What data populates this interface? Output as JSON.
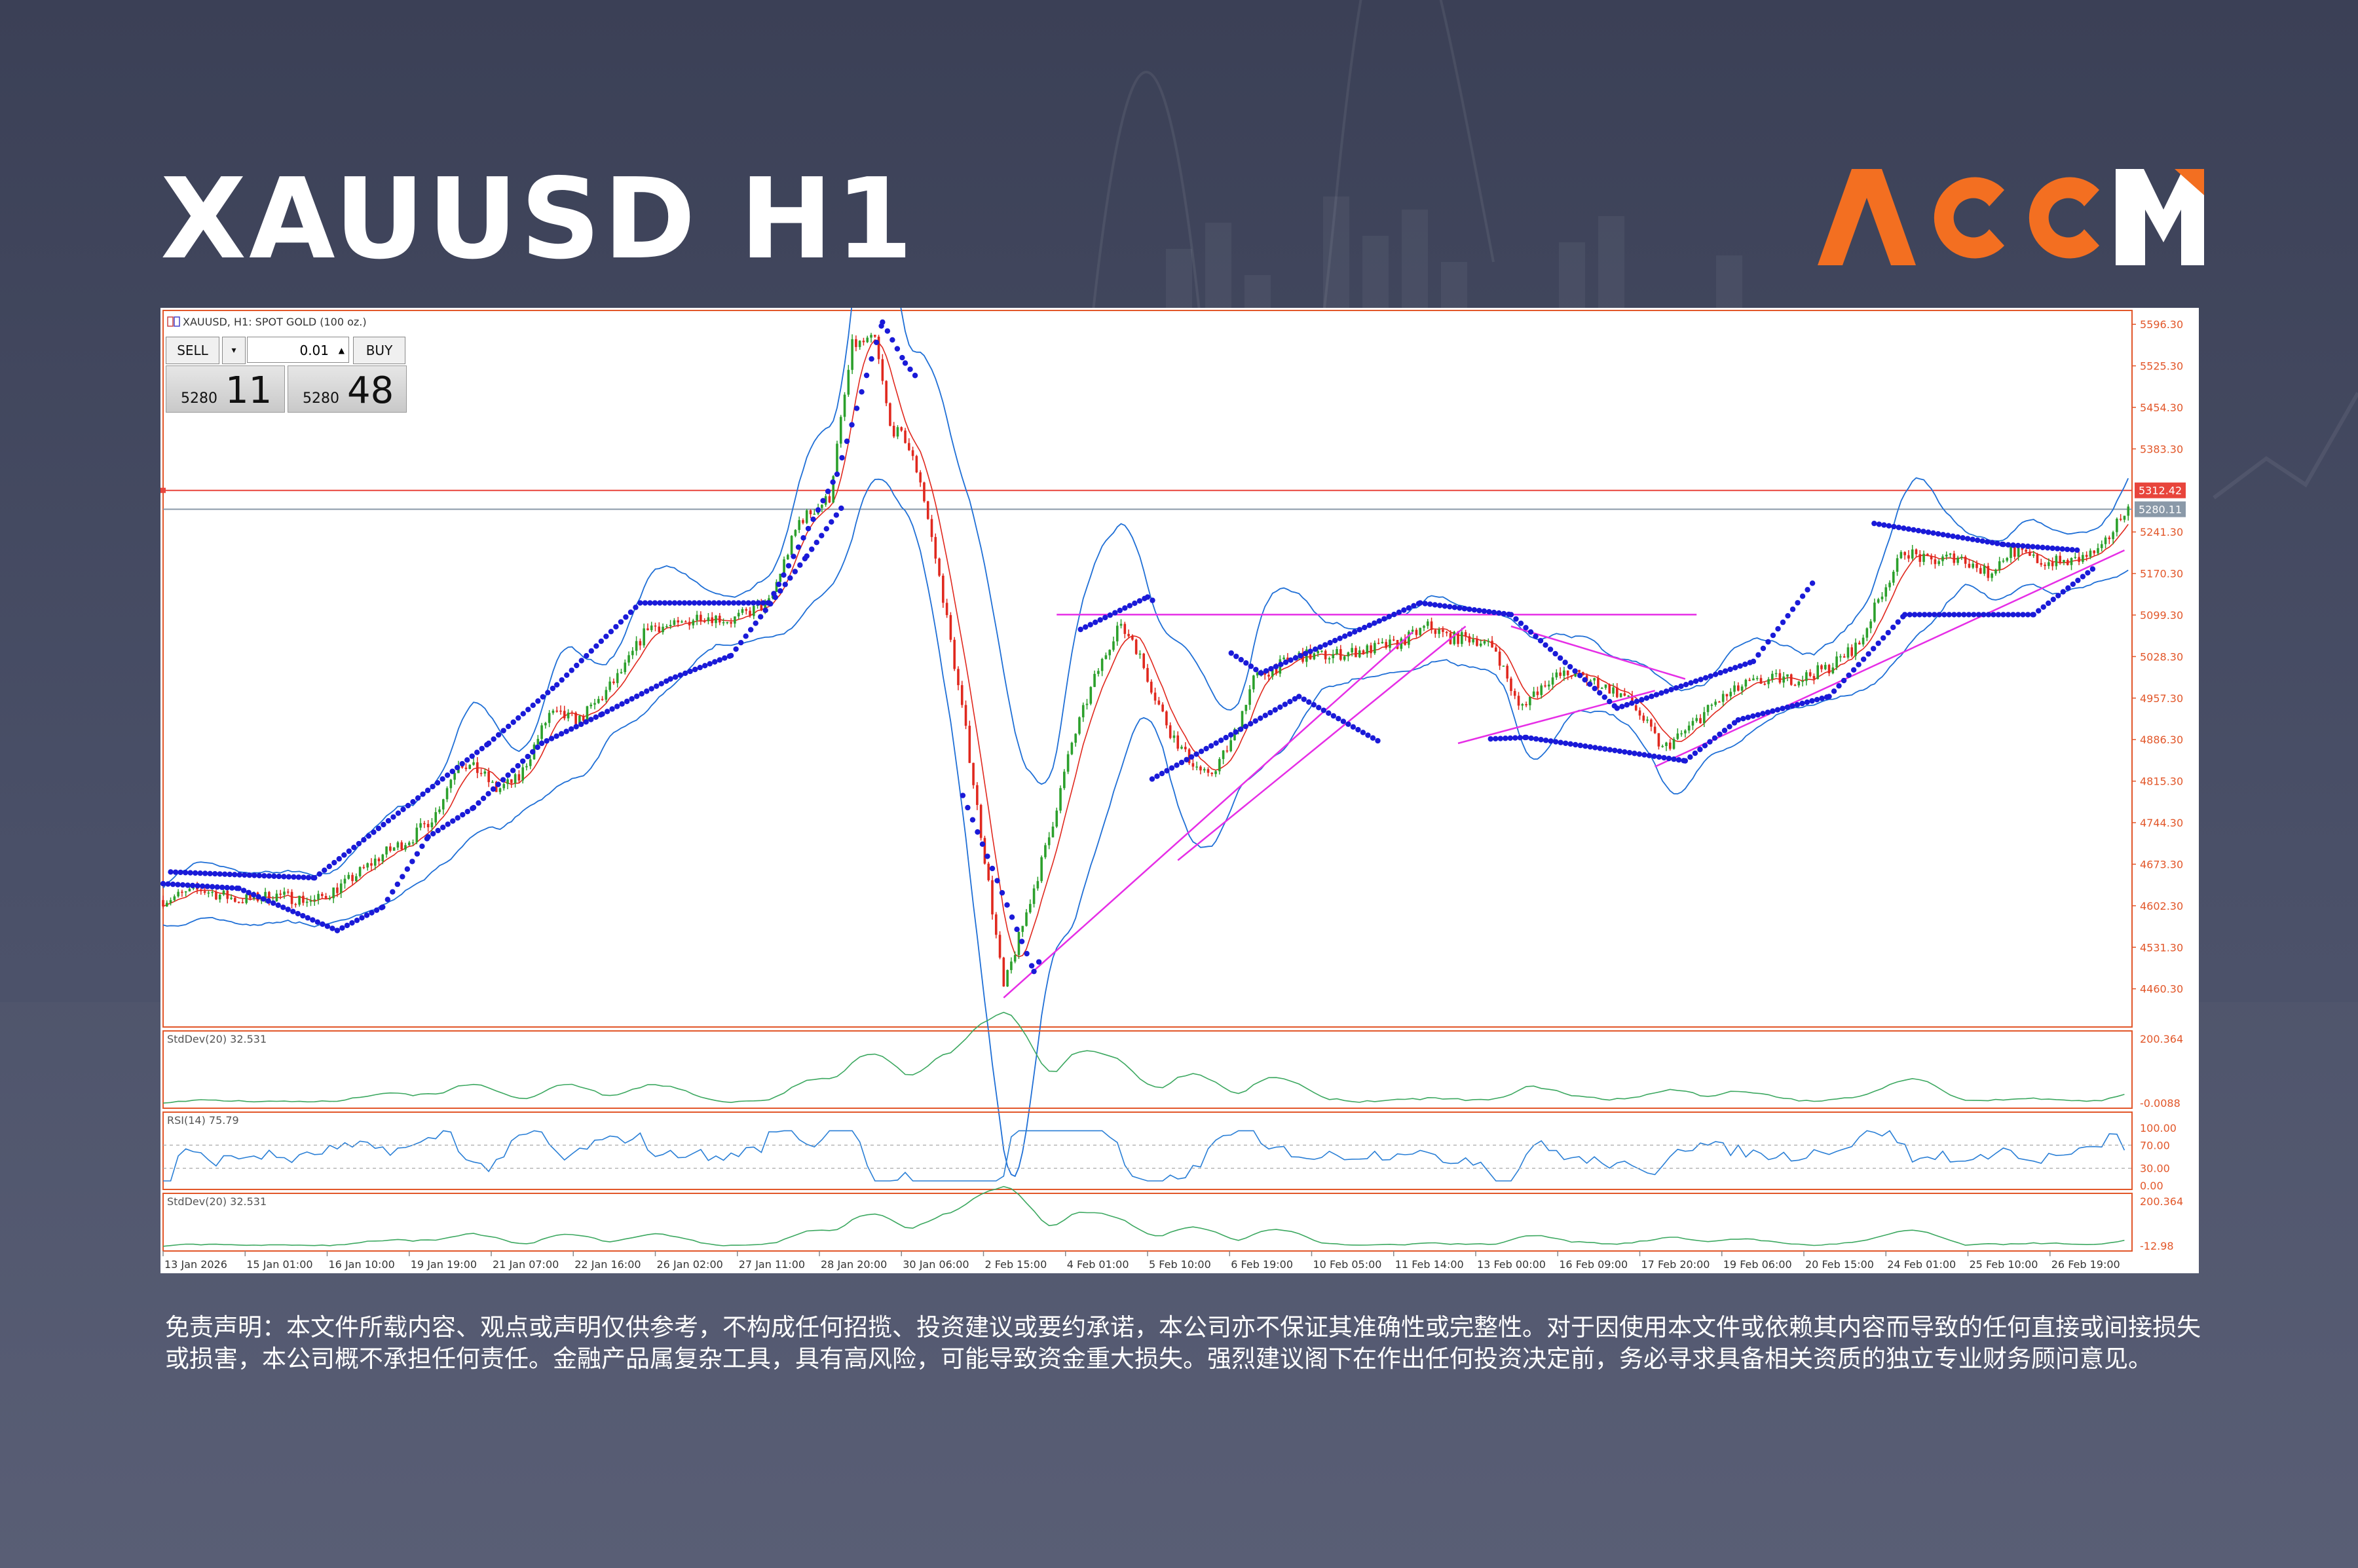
{
  "page": {
    "title": "XAUUSD H1",
    "logo_text": "ACCM"
  },
  "colors": {
    "brand_orange": "#f36f21",
    "bull_candle": "#2ca02c",
    "bear_candle": "#e0281e",
    "bollinger": "#1f6fd6",
    "sar_dots": "#1a1ad8",
    "trendlines": "#e62ee6",
    "resistance_line": "#e8453c",
    "stddev": "#3ca860",
    "rsi": "#2a7fd6",
    "axis_text": "#e2572a"
  },
  "chart_header": {
    "label": "XAUUSD, H1:  SPOT GOLD (100 oz.)"
  },
  "trade_panel": {
    "sell_label": "SELL",
    "buy_label": "BUY",
    "lot_size": "0.01",
    "sell_price_prefix": "5280",
    "sell_price_big": "11",
    "buy_price_prefix": "5280",
    "buy_price_big": "48"
  },
  "chart_data": [
    {
      "type": "line",
      "title": "",
      "price_labels": [
        "5596.30",
        "5525.30",
        "5454.30",
        "5383.30",
        "5241.30",
        "5170.30",
        "5099.30",
        "5028.30",
        "4957.30",
        "4886.30",
        "4815.30",
        "4744.30",
        "4673.30",
        "4602.30",
        "4531.30",
        "4460.30"
      ],
      "y_ticks": [
        5596.3,
        5525.3,
        5454.3,
        5383.3,
        5241.3,
        5170.3,
        5099.3,
        5028.3,
        4957.3,
        4886.3,
        4815.3,
        4744.3,
        4673.3,
        4602.3,
        4531.3,
        4460.3
      ],
      "ylim": [
        4395,
        5620
      ],
      "current_price_label": "5280.11",
      "resistance_label": "5312.42",
      "resistance_level": 5312.42,
      "current_price": 5280.11,
      "x_labels": [
        "13 Jan 2026",
        "15 Jan 01:00",
        "16 Jan 10:00",
        "19 Jan 19:00",
        "21 Jan 07:00",
        "22 Jan 16:00",
        "26 Jan 02:00",
        "27 Jan 11:00",
        "28 Jan 20:00",
        "30 Jan 06:00",
        "2 Feb 15:00",
        "4 Feb 01:00",
        "5 Feb 10:00",
        "6 Feb 19:00",
        "10 Feb 05:00",
        "11 Feb 14:00",
        "13 Feb 00:00",
        "16 Feb 09:00",
        "17 Feb 20:00",
        "19 Feb 06:00",
        "20 Feb 15:00",
        "24 Feb 01:00",
        "25 Feb 10:00",
        "26 Feb 19:00"
      ],
      "close_path": [
        [
          0,
          4612
        ],
        [
          10,
          4630
        ],
        [
          20,
          4612
        ],
        [
          30,
          4620
        ],
        [
          40,
          4610
        ],
        [
          48,
          4640
        ],
        [
          58,
          4690
        ],
        [
          66,
          4720
        ],
        [
          72,
          4760
        ],
        [
          78,
          4850
        ],
        [
          84,
          4830
        ],
        [
          88,
          4800
        ],
        [
          94,
          4820
        ],
        [
          102,
          4930
        ],
        [
          110,
          4920
        ],
        [
          116,
          4960
        ],
        [
          122,
          5010
        ],
        [
          128,
          5080
        ],
        [
          136,
          5080
        ],
        [
          142,
          5100
        ],
        [
          150,
          5090
        ],
        [
          160,
          5120
        ],
        [
          168,
          5260
        ],
        [
          176,
          5300
        ],
        [
          182,
          5560
        ],
        [
          188,
          5570
        ],
        [
          192,
          5420
        ],
        [
          196,
          5400
        ],
        [
          200,
          5330
        ],
        [
          206,
          5130
        ],
        [
          212,
          4900
        ],
        [
          218,
          4640
        ],
        [
          222,
          4460
        ],
        [
          228,
          4590
        ],
        [
          234,
          4720
        ],
        [
          240,
          4880
        ],
        [
          246,
          4990
        ],
        [
          252,
          5080
        ],
        [
          256,
          5060
        ],
        [
          262,
          4960
        ],
        [
          266,
          4900
        ],
        [
          270,
          4860
        ],
        [
          276,
          4820
        ],
        [
          282,
          4880
        ],
        [
          288,
          4990
        ],
        [
          294,
          5010
        ],
        [
          300,
          5030
        ],
        [
          308,
          5030
        ],
        [
          318,
          5040
        ],
        [
          326,
          5050
        ],
        [
          334,
          5080
        ],
        [
          340,
          5060
        ],
        [
          346,
          5060
        ],
        [
          352,
          5040
        ],
        [
          358,
          4940
        ],
        [
          366,
          4990
        ],
        [
          372,
          5000
        ],
        [
          380,
          4980
        ],
        [
          386,
          4960
        ],
        [
          390,
          4930
        ],
        [
          396,
          4870
        ],
        [
          402,
          4900
        ],
        [
          410,
          4950
        ],
        [
          418,
          4980
        ],
        [
          426,
          4990
        ],
        [
          432,
          4990
        ],
        [
          440,
          5010
        ],
        [
          448,
          5050
        ],
        [
          454,
          5140
        ],
        [
          460,
          5210
        ],
        [
          466,
          5190
        ],
        [
          474,
          5200
        ],
        [
          482,
          5170
        ],
        [
          488,
          5210
        ],
        [
          496,
          5190
        ],
        [
          504,
          5190
        ],
        [
          512,
          5210
        ],
        [
          518,
          5280
        ]
      ],
      "bollinger_offset": 90,
      "sar": {
        "below": [
          [
            0,
            4640
          ],
          [
            20,
            4632
          ],
          [
            46,
            4560
          ],
          [
            58,
            4600
          ],
          [
            70,
            4720
          ],
          [
            82,
            4770
          ],
          [
            100,
            4880
          ],
          [
            116,
            4930
          ],
          [
            134,
            4990
          ],
          [
            150,
            5030
          ],
          [
            170,
            5200
          ],
          [
            180,
            5290
          ],
          [
            230,
            4490
          ],
          [
            242,
            4640
          ],
          [
            256,
            4800
          ],
          [
            300,
            4960
          ],
          [
            322,
            4880
          ],
          [
            360,
            4890
          ],
          [
            402,
            4850
          ],
          [
            416,
            4920
          ],
          [
            440,
            4960
          ],
          [
            460,
            5100
          ],
          [
            494,
            5100
          ],
          [
            510,
            5180
          ]
        ],
        "above": [
          [
            2,
            4660
          ],
          [
            40,
            4650
          ],
          [
            86,
            4880
          ],
          [
            104,
            4980
          ],
          [
            126,
            5120
          ],
          [
            160,
            5120
          ],
          [
            178,
            5340
          ],
          [
            190,
            5600
          ],
          [
            196,
            5530
          ],
          [
            212,
            5400
          ],
          [
            228,
            5030
          ],
          [
            260,
            5130
          ],
          [
            290,
            5000
          ],
          [
            332,
            5120
          ],
          [
            356,
            5100
          ],
          [
            384,
            4940
          ],
          [
            420,
            5020
          ],
          [
            448,
            5260
          ],
          [
            486,
            5220
          ],
          [
            506,
            5210
          ]
        ]
      },
      "trendlines": [
        [
          [
            222,
            4445
          ],
          [
            330,
            5070
          ]
        ],
        [
          [
            236,
            5100
          ],
          [
            405,
            5100
          ]
        ],
        [
          [
            268,
            4680
          ],
          [
            344,
            5080
          ]
        ],
        [
          [
            342,
            4880
          ],
          [
            394,
            4970
          ]
        ],
        [
          [
            356,
            5080
          ],
          [
            402,
            4990
          ]
        ],
        [
          [
            394,
            4840
          ],
          [
            518,
            5210
          ]
        ]
      ]
    },
    {
      "type": "line",
      "title": "StdDev(20) 32.531",
      "ylim_labels": [
        "200.364",
        "-0.0088"
      ],
      "ylim": [
        0,
        200
      ]
    },
    {
      "type": "line",
      "title": "RSI(14) 75.79",
      "y_ticks": [
        "100.00",
        "70.00",
        "30.00",
        "0.00"
      ],
      "ylim": [
        0,
        100
      ],
      "levels": [
        70,
        30
      ]
    },
    {
      "type": "line",
      "title": "StdDev(20) 32.531",
      "ylim_labels": [
        "200.364",
        "-12.98"
      ],
      "ylim": [
        0,
        200
      ]
    }
  ],
  "disclaimer": "免责声明：本文件所载内容、观点或声明仅供参考，不构成任何招揽、投资建议或要约承诺，本公司亦不保证其准确性或完整性。对于因使用本文件或依赖其内容而导致的任何直接或间接损失或损害，本公司概不承担任何责任。金融产品属复杂工具，具有高风险，可能导致资金重大损失。强烈建议阁下在作出任何投资决定前，务必寻求具备相关资质的独立专业财务顾问意见。"
}
